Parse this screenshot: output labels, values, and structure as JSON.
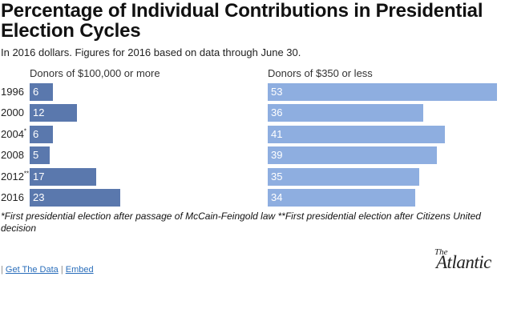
{
  "title": "Percentage of Individual Contributions in Presidential Election Cycles",
  "subtitle": "In 2016 dollars. Figures for 2016 based on data through June 30.",
  "chart_data": {
    "type": "bar",
    "orientation": "horizontal",
    "categories": [
      "1996",
      "2000",
      "2004",
      "2008",
      "2012",
      "2016"
    ],
    "category_marks": [
      "",
      "",
      "*",
      "",
      "**",
      ""
    ],
    "series": [
      {
        "name": "Donors of $100,000 or more",
        "values": [
          6,
          12,
          6,
          5,
          17,
          23
        ],
        "color": "#5a78ad"
      },
      {
        "name": "Donors of $350 or less",
        "values": [
          53,
          36,
          41,
          39,
          35,
          34
        ],
        "color": "#8eaee0"
      }
    ],
    "xlim": [
      0,
      53
    ],
    "grid": false,
    "legend": "panel-headers"
  },
  "footnote": "*First presidential election after passage of McCain-Feingold law **First presidential election after Citizens United decision",
  "links": {
    "separator": "|",
    "get_data": "Get The Data",
    "embed": "Embed"
  },
  "logo": {
    "the": "The",
    "name": "Atlantic"
  }
}
